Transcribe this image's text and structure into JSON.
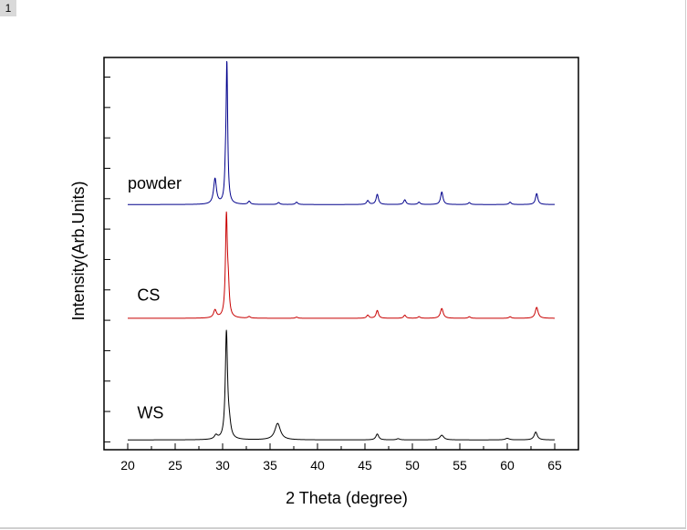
{
  "page": {
    "badge": "1"
  },
  "chart_data": {
    "type": "line",
    "title": "",
    "xlabel": "2 Theta (degree)",
    "ylabel": "Intensity(Arb.Units)",
    "xlim": [
      17.5,
      67.5
    ],
    "xticks": [
      20,
      25,
      30,
      35,
      40,
      45,
      50,
      55,
      60,
      65
    ],
    "ylim": [
      0,
      100
    ],
    "grid": false,
    "legend": "none",
    "series": [
      {
        "name": "powder",
        "color": "#00008b",
        "baseline": 62.5,
        "peaks": [
          {
            "x": 29.2,
            "h": 6.5,
            "w": 0.18
          },
          {
            "x": 30.3,
            "h": 5.0,
            "w": 0.1
          },
          {
            "x": 30.45,
            "h": 35.0,
            "w": 0.1
          },
          {
            "x": 32.8,
            "h": 0.8,
            "w": 0.15
          },
          {
            "x": 35.9,
            "h": 0.5,
            "w": 0.15
          },
          {
            "x": 37.8,
            "h": 0.6,
            "w": 0.15
          },
          {
            "x": 45.3,
            "h": 1.0,
            "w": 0.15
          },
          {
            "x": 46.3,
            "h": 2.6,
            "w": 0.15
          },
          {
            "x": 49.2,
            "h": 1.2,
            "w": 0.15
          },
          {
            "x": 50.7,
            "h": 0.6,
            "w": 0.15
          },
          {
            "x": 53.1,
            "h": 3.2,
            "w": 0.15
          },
          {
            "x": 56.0,
            "h": 0.5,
            "w": 0.15
          },
          {
            "x": 60.3,
            "h": 0.6,
            "w": 0.15
          },
          {
            "x": 63.1,
            "h": 2.8,
            "w": 0.15
          }
        ]
      },
      {
        "name": "CS",
        "color": "#c80000",
        "baseline": 33.5,
        "peaks": [
          {
            "x": 29.2,
            "h": 2.0,
            "w": 0.18
          },
          {
            "x": 30.4,
            "h": 25.5,
            "w": 0.12
          },
          {
            "x": 30.6,
            "h": 6.0,
            "w": 0.12
          },
          {
            "x": 32.8,
            "h": 0.4,
            "w": 0.15
          },
          {
            "x": 37.8,
            "h": 0.3,
            "w": 0.15
          },
          {
            "x": 45.3,
            "h": 0.8,
            "w": 0.15
          },
          {
            "x": 46.3,
            "h": 2.0,
            "w": 0.15
          },
          {
            "x": 49.2,
            "h": 0.8,
            "w": 0.15
          },
          {
            "x": 50.7,
            "h": 0.4,
            "w": 0.15
          },
          {
            "x": 53.1,
            "h": 2.5,
            "w": 0.18
          },
          {
            "x": 56.0,
            "h": 0.4,
            "w": 0.15
          },
          {
            "x": 60.3,
            "h": 0.4,
            "w": 0.15
          },
          {
            "x": 63.1,
            "h": 2.8,
            "w": 0.18
          }
        ]
      },
      {
        "name": "WS",
        "color": "#000000",
        "baseline": 2.5,
        "peaks": [
          {
            "x": 29.3,
            "h": 1.0,
            "w": 0.2
          },
          {
            "x": 30.4,
            "h": 27.0,
            "w": 0.14
          },
          {
            "x": 30.7,
            "h": 3.0,
            "w": 0.2
          },
          {
            "x": 35.8,
            "h": 4.2,
            "w": 0.35
          },
          {
            "x": 46.3,
            "h": 1.5,
            "w": 0.18
          },
          {
            "x": 48.5,
            "h": 0.3,
            "w": 0.2
          },
          {
            "x": 53.1,
            "h": 1.2,
            "w": 0.25
          },
          {
            "x": 60.0,
            "h": 0.4,
            "w": 0.25
          },
          {
            "x": 63.0,
            "h": 2.0,
            "w": 0.2
          }
        ]
      }
    ],
    "series_label_x": [
      20.0,
      21.0,
      21.0
    ],
    "series_label_y": [
      66.5,
      38.0,
      8.0
    ]
  }
}
